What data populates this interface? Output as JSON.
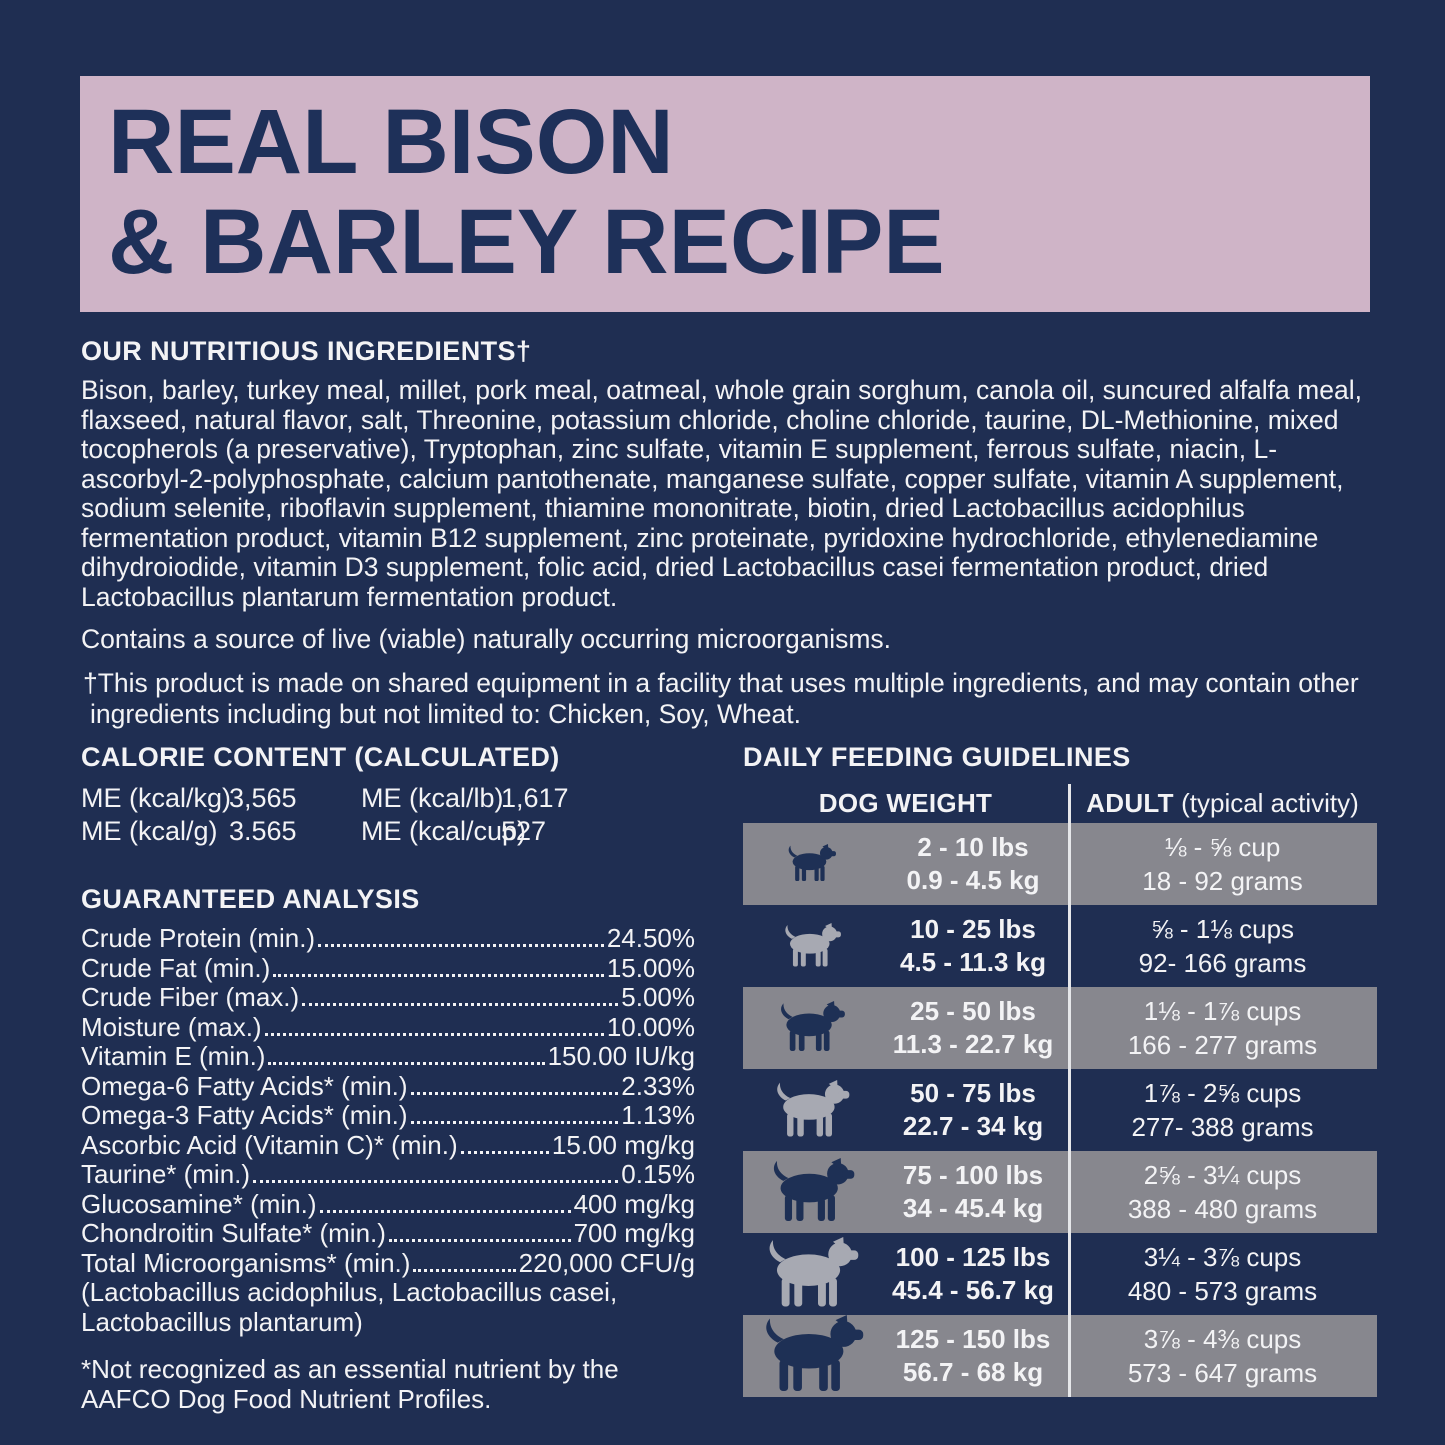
{
  "colors": {
    "background": "#1f2e52",
    "banner_bg": "#cfb4c7",
    "banner_text": "#1e3059",
    "body_text": "#f3f3f5",
    "row_gray": "#87878e",
    "dog_icon_navy": "#1e3055",
    "dog_icon_light": "#a7a9b2"
  },
  "banner": {
    "title_line1": "REAL BISON",
    "title_line2": "& BARLEY RECIPE"
  },
  "ingredients": {
    "heading": "OUR NUTRITIOUS INGREDIENTS†",
    "body": "Bison, barley, turkey meal, millet, pork meal, oatmeal, whole grain sorghum, canola oil, suncured alfalfa meal, flaxseed, natural flavor, salt, Threonine, potassium chloride, choline chloride, taurine, DL-Methionine, mixed tocopherols (a preservative), Tryptophan, zinc sulfate, vitamin E supplement, ferrous sulfate, niacin, L-ascorbyl-2-polyphosphate, calcium pantothenate, manganese sulfate, copper sulfate, vitamin A supplement, sodium selenite, riboflavin supplement, thiamine mononitrate, biotin, dried Lactobacillus acidophilus fermentation product, vitamin B12 supplement, zinc proteinate, pyridoxine hydrochloride, ethylenediamine dihydroiodide, vitamin D3 supplement, folic acid, dried Lactobacillus casei fermentation product, dried Lactobacillus plantarum fermentation product.",
    "contains_note": "Contains a source of live (viable) naturally occurring microorganisms.",
    "shared_footnote": "†This product is made on shared equipment in a facility that uses multiple ingredients, and may contain other ingredients including but not limited to: Chicken, Soy, Wheat."
  },
  "calorie_content": {
    "heading": "CALORIE CONTENT (CALCULATED)",
    "left_entries": [
      {
        "label": "ME (kcal/kg)",
        "value": "3,565"
      },
      {
        "label": "ME (kcal/g)",
        "value": "3.565"
      }
    ],
    "right_entries": [
      {
        "label": "ME (kcal/lb)",
        "value": "1,617"
      },
      {
        "label": "ME (kcal/cup)",
        "value": "527"
      }
    ]
  },
  "guaranteed_analysis": {
    "heading": "GUARANTEED ANALYSIS",
    "rows": [
      {
        "label": "Crude Protein (min.)",
        "value": "24.50%"
      },
      {
        "label": "Crude Fat (min.)",
        "value": "15.00%"
      },
      {
        "label": "Crude Fiber (max.)",
        "value": "5.00%"
      },
      {
        "label": "Moisture (max.)",
        "value": "10.00%"
      },
      {
        "label": "Vitamin E (min.)",
        "value": "150.00 IU/kg"
      },
      {
        "label": "Omega-6 Fatty Acids* (min.)",
        "value": "2.33%"
      },
      {
        "label": "Omega-3 Fatty Acids* (min.)",
        "value": "1.13%"
      },
      {
        "label": "Ascorbic Acid (Vitamin C)* (min.)",
        "value": "15.00 mg/kg"
      },
      {
        "label": "Taurine* (min.)",
        "value": "0.15%"
      },
      {
        "label": "Glucosamine* (min.)",
        "value": "400 mg/kg"
      },
      {
        "label": "Chondroitin Sulfate* (min.)",
        "value": "700 mg/kg"
      },
      {
        "label": "Total Microorganisms* (min.)",
        "value": "220,000 CFU/g"
      }
    ],
    "continuation": [
      "(Lactobacillus acidophilus, Lactobacillus casei,",
      "Lactobacillus plantarum)"
    ],
    "footnote": "*Not recognized as an essential nutrient by the AAFCO Dog Food Nutrient Profiles."
  },
  "feeding_guidelines": {
    "heading": "DAILY FEEDING GUIDELINES",
    "col1_header": "DOG WEIGHT",
    "col2_header_bold": "ADULT",
    "col2_header_rest": " (typical activity)",
    "rows": [
      {
        "icon": "dog-icon",
        "lbs": "2 - 10 lbs",
        "kg": "0.9 - 4.5 kg",
        "cups": "⅛ - ⅝ cup",
        "grams": "18 - 92 grams"
      },
      {
        "icon": "dog-icon",
        "lbs": "10 - 25 lbs",
        "kg": "4.5 - 11.3 kg",
        "cups": "⅝ - 1⅛ cups",
        "grams": "92- 166 grams"
      },
      {
        "icon": "dog-icon",
        "lbs": "25 - 50 lbs",
        "kg": "11.3 - 22.7 kg",
        "cups": "1⅛ - 1⅞ cups",
        "grams": "166 - 277 grams"
      },
      {
        "icon": "dog-icon",
        "lbs": "50 - 75 lbs",
        "kg": "22.7 - 34 kg",
        "cups": "1⅞ - 2⅝ cups",
        "grams": "277- 388 grams"
      },
      {
        "icon": "dog-icon",
        "lbs": "75 - 100 lbs",
        "kg": "34 - 45.4 kg",
        "cups": "2⅝ - 3¼ cups",
        "grams": "388 - 480 grams"
      },
      {
        "icon": "dog-icon",
        "lbs": "100 - 125 lbs",
        "kg": "45.4 - 56.7 kg",
        "cups": "3¼ - 3⅞ cups",
        "grams": "480 - 573 grams"
      },
      {
        "icon": "dog-icon",
        "lbs": "125 - 150 lbs",
        "kg": "56.7 - 68 kg",
        "cups": "3⅞ - 4⅜ cups",
        "grams": "573 - 647 grams"
      }
    ]
  }
}
